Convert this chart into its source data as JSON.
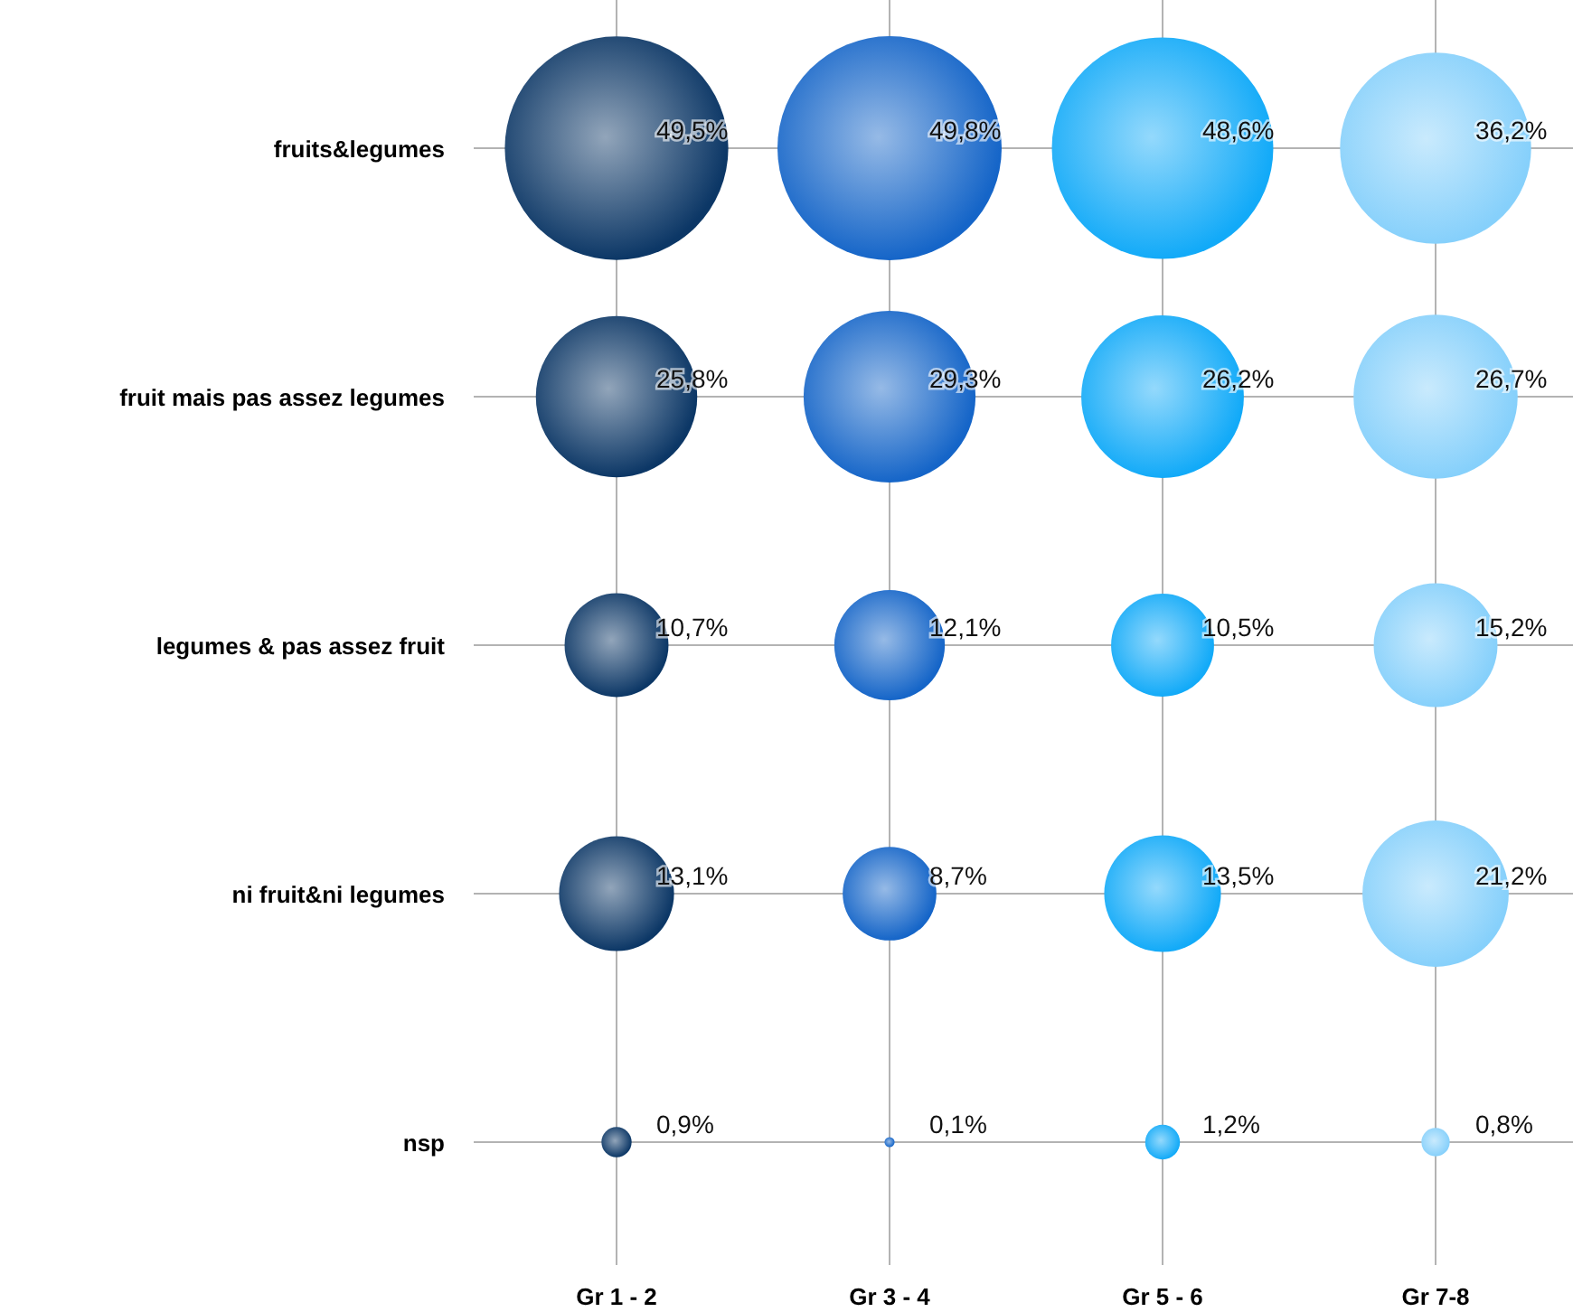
{
  "chart_data": {
    "type": "heatmap",
    "categories": [
      "Gr 1 - 2",
      "Gr 3 - 4",
      "Gr 5 - 6",
      "Gr 7-8"
    ],
    "y_categories": [
      "fruits&legumes",
      "fruit mais pas assez legumes",
      "legumes & pas assez fruit",
      "ni fruit&ni legumes",
      "nsp"
    ],
    "cells": [
      [
        49.5,
        49.8,
        48.6,
        36.2
      ],
      [
        25.8,
        29.3,
        26.2,
        26.7
      ],
      [
        10.7,
        12.1,
        10.5,
        15.2
      ],
      [
        13.1,
        8.7,
        13.5,
        21.2
      ],
      [
        0.9,
        0.1,
        1.2,
        0.8
      ]
    ],
    "cell_labels": [
      [
        "49,5%",
        "49,8%",
        "48,6%",
        "36,2%"
      ],
      [
        "25,8%",
        "29,3%",
        "26,2%",
        "26,7%"
      ],
      [
        "10,7%",
        "12,1%",
        "10,5%",
        "15,2%"
      ],
      [
        "13,1%",
        "8,7%",
        "13,5%",
        "21,2%"
      ],
      [
        "0,9%",
        "0,1%",
        "1,2%",
        "0,8%"
      ]
    ],
    "colors": [
      "#0c3766",
      "#1565c8",
      "#12aaf8",
      "#86d0fb"
    ],
    "grid": true
  }
}
